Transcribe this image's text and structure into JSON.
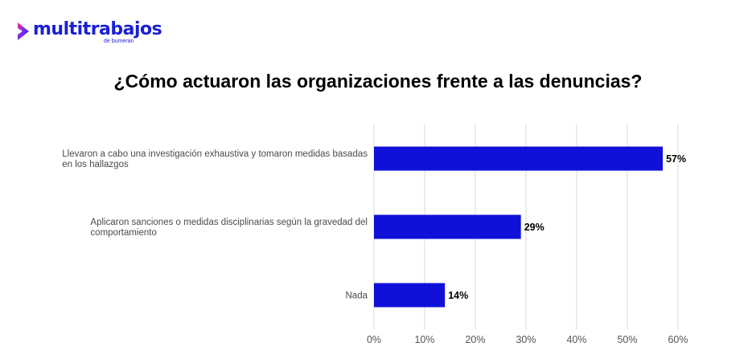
{
  "brand": {
    "name": "multitrabajos",
    "sub": "de bumeran",
    "icon": "chevron-logo-icon",
    "color": "#1b1fd6"
  },
  "chart_data": {
    "type": "bar",
    "orientation": "horizontal",
    "title": "¿Cómo actuaron las organizaciones frente a las denuncias?",
    "categories": [
      [
        "Llevaron a cabo una investigación exhaustiva y tomaron medidas basadas",
        "en los hallazgos"
      ],
      [
        "Aplicaron sanciones o medidas disciplinarias según la gravedad del",
        "comportamiento"
      ],
      [
        "Nada"
      ]
    ],
    "values": [
      57,
      29,
      14
    ],
    "data_labels": [
      "57%",
      "29%",
      "14%"
    ],
    "xlim": [
      0,
      60
    ],
    "xticks": [
      0,
      10,
      20,
      30,
      40,
      50,
      60
    ],
    "xtick_labels": [
      "0%",
      "10%",
      "20%",
      "30%",
      "40%",
      "50%",
      "60%"
    ],
    "grid": true,
    "bar_color": "#1010d8",
    "grid_color": "#d9d9d9",
    "legend": "none"
  }
}
